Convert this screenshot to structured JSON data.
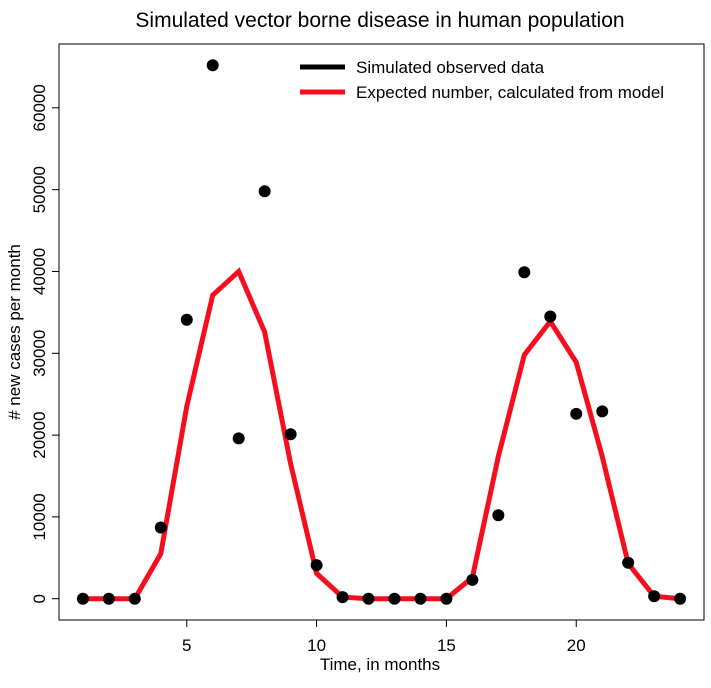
{
  "chart_data": {
    "type": "line",
    "title": "Simulated vector borne disease in human population",
    "xlabel": "Time, in months",
    "ylabel": "# new cases per month",
    "xlim": [
      0.08,
      24.92
    ],
    "ylim": [
      -2600,
      67800
    ],
    "x_ticks": [
      5,
      10,
      15,
      20
    ],
    "y_ticks": [
      0,
      10000,
      20000,
      30000,
      40000,
      50000,
      60000
    ],
    "grid": false,
    "legend_position": "top-right",
    "series": [
      {
        "name": "Simulated observed data",
        "kind": "points",
        "color": "#000000",
        "x": [
          1,
          2,
          3,
          4,
          5,
          6,
          7,
          8,
          9,
          10,
          11,
          12,
          13,
          14,
          15,
          16,
          17,
          18,
          19,
          20,
          21,
          22,
          23,
          24
        ],
        "y": [
          0,
          0,
          0,
          8700,
          34100,
          65200,
          19600,
          49800,
          20100,
          4100,
          200,
          0,
          0,
          0,
          0,
          2300,
          10200,
          39900,
          34500,
          22600,
          22900,
          4400,
          300,
          0
        ]
      },
      {
        "name": "Expected number, calculated from model",
        "kind": "line",
        "color": "#f50f1e",
        "x": [
          1,
          2,
          3,
          4,
          5,
          6,
          7,
          8,
          9,
          10,
          11,
          12,
          13,
          14,
          15,
          16,
          17,
          18,
          19,
          20,
          21,
          22,
          23,
          24
        ],
        "y": [
          0,
          0,
          0,
          5500,
          23500,
          37100,
          40000,
          32600,
          16500,
          3100,
          200,
          0,
          0,
          0,
          0,
          2600,
          17400,
          29800,
          33900,
          28900,
          17400,
          4300,
          300,
          0
        ]
      }
    ]
  }
}
